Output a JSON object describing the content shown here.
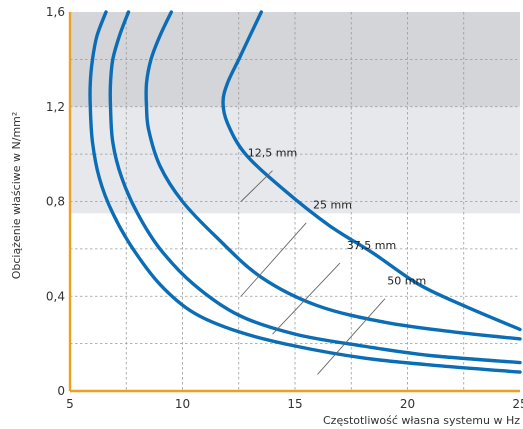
{
  "chart_data": {
    "type": "line",
    "xlabel": "Częstotliwość własna systemu w Hz",
    "ylabel": "Obciążenie właściwe w N/mm²",
    "xlim": [
      5,
      25
    ],
    "ylim": [
      0,
      1.6
    ],
    "x_ticks": [
      "5",
      "10",
      "15",
      "20",
      "25"
    ],
    "y_ticks": [
      "0",
      "0,4",
      "0,8",
      "1,2",
      "1,6"
    ],
    "grid": true,
    "colors": {
      "curve": "#0b6db5",
      "axis": "#f0a020",
      "band_dark": "#d3d5d9",
      "band_light": "#e7e8eb"
    },
    "bands": [
      {
        "from": 1.2,
        "to": 1.6,
        "shade": "dark"
      },
      {
        "from": 0.75,
        "to": 1.2,
        "shade": "light"
      }
    ],
    "series": [
      {
        "name": "12,5 mm",
        "points": [
          [
            13.5,
            1.6
          ],
          [
            13.0,
            1.5
          ],
          [
            12.5,
            1.4
          ],
          [
            12.0,
            1.3
          ],
          [
            11.8,
            1.22
          ],
          [
            12.0,
            1.13
          ],
          [
            12.8,
            1.0
          ],
          [
            14.5,
            0.85
          ],
          [
            16.5,
            0.7
          ],
          [
            18.5,
            0.58
          ],
          [
            20.5,
            0.45
          ],
          [
            22.5,
            0.36
          ],
          [
            25.0,
            0.26
          ]
        ],
        "label": "12,5 mm",
        "label_pos": [
          12.9,
          0.99
        ],
        "leader": [
          [
            14.0,
            0.93
          ],
          [
            12.6,
            0.8
          ]
        ]
      },
      {
        "name": "25 mm",
        "points": [
          [
            9.5,
            1.6
          ],
          [
            9.0,
            1.5
          ],
          [
            8.6,
            1.4
          ],
          [
            8.4,
            1.3
          ],
          [
            8.4,
            1.2
          ],
          [
            8.5,
            1.1
          ],
          [
            9.0,
            0.95
          ],
          [
            10.0,
            0.8
          ],
          [
            11.5,
            0.65
          ],
          [
            13.5,
            0.48
          ],
          [
            16.0,
            0.36
          ],
          [
            19.0,
            0.29
          ],
          [
            22.0,
            0.25
          ],
          [
            25.0,
            0.22
          ]
        ],
        "label": "25 mm",
        "label_pos": [
          15.8,
          0.77
        ],
        "leader": [
          [
            15.5,
            0.71
          ],
          [
            12.6,
            0.4
          ]
        ]
      },
      {
        "name": "37,5 mm",
        "points": [
          [
            7.6,
            1.6
          ],
          [
            7.2,
            1.5
          ],
          [
            6.9,
            1.4
          ],
          [
            6.8,
            1.3
          ],
          [
            6.8,
            1.2
          ],
          [
            6.9,
            1.05
          ],
          [
            7.3,
            0.9
          ],
          [
            8.0,
            0.75
          ],
          [
            9.0,
            0.6
          ],
          [
            10.5,
            0.45
          ],
          [
            12.5,
            0.32
          ],
          [
            15.0,
            0.24
          ],
          [
            18.0,
            0.19
          ],
          [
            21.0,
            0.15
          ],
          [
            25.0,
            0.12
          ]
        ],
        "label": "37,5 mm",
        "label_pos": [
          17.3,
          0.6
        ],
        "leader": [
          [
            17.0,
            0.54
          ],
          [
            14.0,
            0.24
          ]
        ]
      },
      {
        "name": "50 mm",
        "points": [
          [
            6.6,
            1.6
          ],
          [
            6.2,
            1.5
          ],
          [
            6.0,
            1.4
          ],
          [
            5.9,
            1.3
          ],
          [
            5.9,
            1.2
          ],
          [
            6.0,
            1.05
          ],
          [
            6.3,
            0.9
          ],
          [
            6.9,
            0.75
          ],
          [
            7.8,
            0.6
          ],
          [
            9.0,
            0.45
          ],
          [
            10.5,
            0.33
          ],
          [
            12.5,
            0.25
          ],
          [
            15.0,
            0.19
          ],
          [
            18.0,
            0.14
          ],
          [
            21.0,
            0.11
          ],
          [
            25.0,
            0.08
          ]
        ],
        "label": "50 mm",
        "label_pos": [
          19.1,
          0.45
        ],
        "leader": [
          [
            19.0,
            0.39
          ],
          [
            16.0,
            0.07
          ]
        ]
      }
    ]
  }
}
